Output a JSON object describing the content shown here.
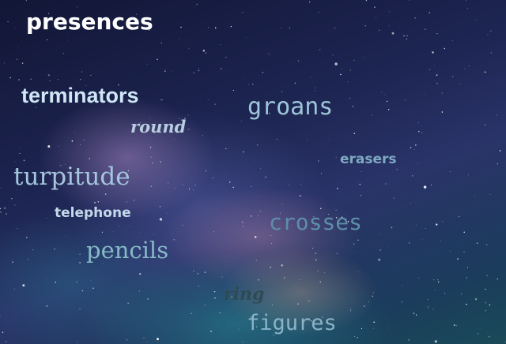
{
  "words": [
    {
      "text": "presences"
    },
    {
      "text": "terminators"
    },
    {
      "text": "round"
    },
    {
      "text": "groans"
    },
    {
      "text": "erasers"
    },
    {
      "text": "turpitude"
    },
    {
      "text": "telephone"
    },
    {
      "text": "crosses"
    },
    {
      "text": "pencils"
    },
    {
      "text": "ring"
    },
    {
      "text": "figures"
    }
  ]
}
